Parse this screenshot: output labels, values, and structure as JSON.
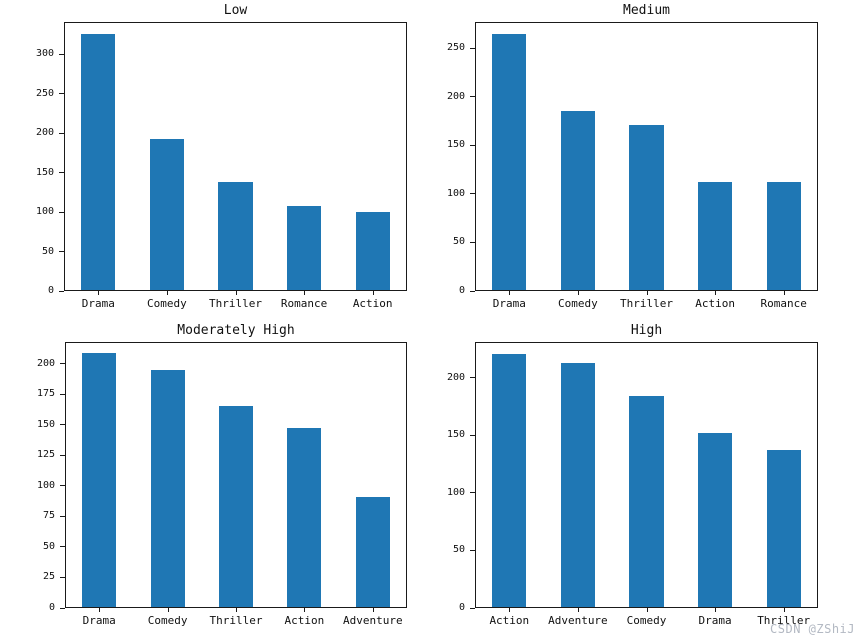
{
  "colors": {
    "bar": "#1f77b4",
    "spine": "#1a1a1a",
    "text": "#111111",
    "watermark": "#b3b9c3",
    "background": "#ffffff"
  },
  "watermark": {
    "text": "CSDN @ZShiJ"
  },
  "chart_data": [
    {
      "type": "bar",
      "title": "Low",
      "categories": [
        "Drama",
        "Comedy",
        "Thriller",
        "Romance",
        "Action"
      ],
      "values": [
        325,
        192,
        137,
        106,
        99
      ],
      "yticks": [
        0,
        50,
        100,
        150,
        200,
        250,
        300
      ],
      "ylim": [
        0,
        341
      ],
      "xlabel": "",
      "ylabel": "",
      "grid": false,
      "legend": "none",
      "bar_width_fraction": 0.5
    },
    {
      "type": "bar",
      "title": "Medium",
      "categories": [
        "Drama",
        "Comedy",
        "Thriller",
        "Action",
        "Romance"
      ],
      "values": [
        264,
        184,
        170,
        111,
        111
      ],
      "yticks": [
        0,
        50,
        100,
        150,
        200,
        250
      ],
      "ylim": [
        0,
        277
      ],
      "xlabel": "",
      "ylabel": "",
      "grid": false,
      "legend": "none",
      "bar_width_fraction": 0.5
    },
    {
      "type": "bar",
      "title": "Moderately High",
      "categories": [
        "Drama",
        "Comedy",
        "Thriller",
        "Action",
        "Adventure"
      ],
      "values": [
        208,
        194,
        165,
        147,
        90
      ],
      "yticks": [
        0,
        25,
        50,
        75,
        100,
        125,
        150,
        175,
        200
      ],
      "ylim": [
        0,
        218
      ],
      "xlabel": "",
      "ylabel": "",
      "grid": false,
      "legend": "none",
      "bar_width_fraction": 0.5
    },
    {
      "type": "bar",
      "title": "High",
      "categories": [
        "Action",
        "Adventure",
        "Comedy",
        "Drama",
        "Thriller"
      ],
      "values": [
        220,
        212,
        183,
        151,
        136
      ],
      "yticks": [
        0,
        50,
        100,
        150,
        200
      ],
      "ylim": [
        0,
        231
      ],
      "xlabel": "",
      "ylabel": "",
      "grid": false,
      "legend": "none",
      "bar_width_fraction": 0.5
    }
  ]
}
